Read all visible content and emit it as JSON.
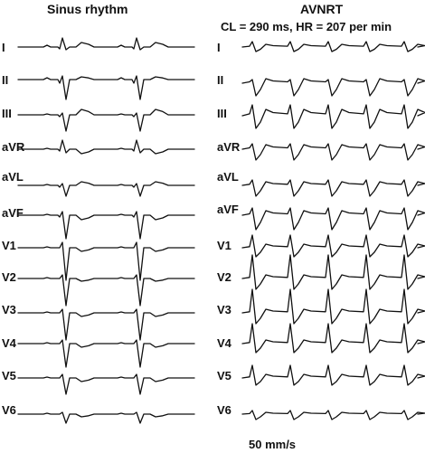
{
  "panels": {
    "left": {
      "title": "Sinus rhythm",
      "leads": [
        "I",
        "II",
        "III",
        "aVR",
        "aVL",
        "aVF",
        "V1",
        "V2",
        "V3",
        "V4",
        "V5",
        "V6"
      ]
    },
    "right": {
      "title": "AVNRT",
      "subtitle": "CL = 290 ms, HR = 207 per min",
      "leads": [
        "I",
        "II",
        "III",
        "aVR",
        "aVL",
        "aVF",
        "V1",
        "V2",
        "V3",
        "V4",
        "V5",
        "V6"
      ]
    }
  },
  "footer": {
    "speed": "50 mm/s"
  },
  "colors": {
    "trace": "#111111",
    "background": "#ffffff"
  }
}
